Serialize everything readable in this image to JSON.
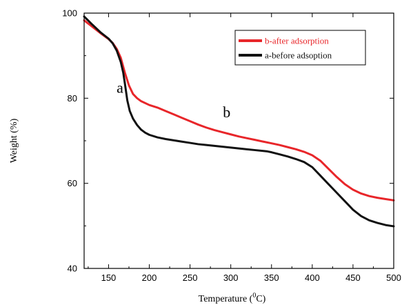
{
  "chart_data": {
    "type": "line",
    "title": "",
    "xlabel": "Temperature (",
    "xlabel_sup": "0",
    "xlabel_unit": "C)",
    "ylabel": "Weight (%)",
    "xlim": [
      120,
      500
    ],
    "ylim": [
      40,
      100
    ],
    "x_ticks": [
      150,
      200,
      250,
      300,
      350,
      400,
      450,
      500
    ],
    "y_ticks": [
      40,
      60,
      80,
      100
    ],
    "grid": false,
    "legend_position": "top-right",
    "series": [
      {
        "name": "b-after adsorption",
        "color": "#e8262a",
        "label": "b",
        "label_at": [
          295,
          75.5
        ],
        "x": [
          120,
          130,
          140,
          150,
          155,
          160,
          165,
          170,
          175,
          180,
          185,
          190,
          200,
          210,
          220,
          230,
          240,
          250,
          260,
          270,
          280,
          290,
          300,
          310,
          320,
          330,
          340,
          350,
          360,
          370,
          380,
          390,
          400,
          410,
          420,
          430,
          440,
          450,
          460,
          470,
          480,
          490,
          500
        ],
        "y": [
          98.3,
          96.8,
          95.3,
          93.9,
          93.0,
          91.6,
          89.5,
          86.0,
          83.0,
          81.0,
          80.0,
          79.3,
          78.4,
          77.8,
          77.0,
          76.2,
          75.4,
          74.6,
          73.8,
          73.1,
          72.5,
          72.0,
          71.5,
          71.0,
          70.6,
          70.2,
          69.8,
          69.4,
          69.0,
          68.5,
          68.0,
          67.4,
          66.6,
          65.3,
          63.4,
          61.5,
          59.8,
          58.5,
          57.6,
          57.0,
          56.6,
          56.3,
          56.0
        ]
      },
      {
        "name": "a-before adsoption",
        "color": "#111111",
        "label": "a",
        "label_at": [
          164,
          81.3
        ],
        "x": [
          120,
          130,
          140,
          150,
          155,
          160,
          165,
          168,
          170,
          173,
          176,
          180,
          185,
          190,
          195,
          200,
          210,
          220,
          230,
          240,
          250,
          260,
          270,
          280,
          290,
          300,
          310,
          320,
          330,
          340,
          345,
          350,
          360,
          370,
          380,
          390,
          400,
          410,
          420,
          430,
          440,
          450,
          460,
          470,
          480,
          490,
          500
        ],
        "y": [
          99.2,
          97.3,
          95.5,
          94.0,
          92.9,
          91.2,
          88.5,
          86.0,
          83.5,
          79.5,
          77.0,
          75.2,
          73.7,
          72.6,
          71.9,
          71.4,
          70.8,
          70.4,
          70.1,
          69.8,
          69.5,
          69.2,
          69.0,
          68.8,
          68.6,
          68.4,
          68.2,
          68.0,
          67.8,
          67.6,
          67.5,
          67.3,
          66.8,
          66.3,
          65.7,
          65.0,
          63.8,
          61.8,
          59.8,
          57.8,
          55.8,
          53.8,
          52.3,
          51.3,
          50.7,
          50.2,
          49.9
        ]
      }
    ]
  }
}
